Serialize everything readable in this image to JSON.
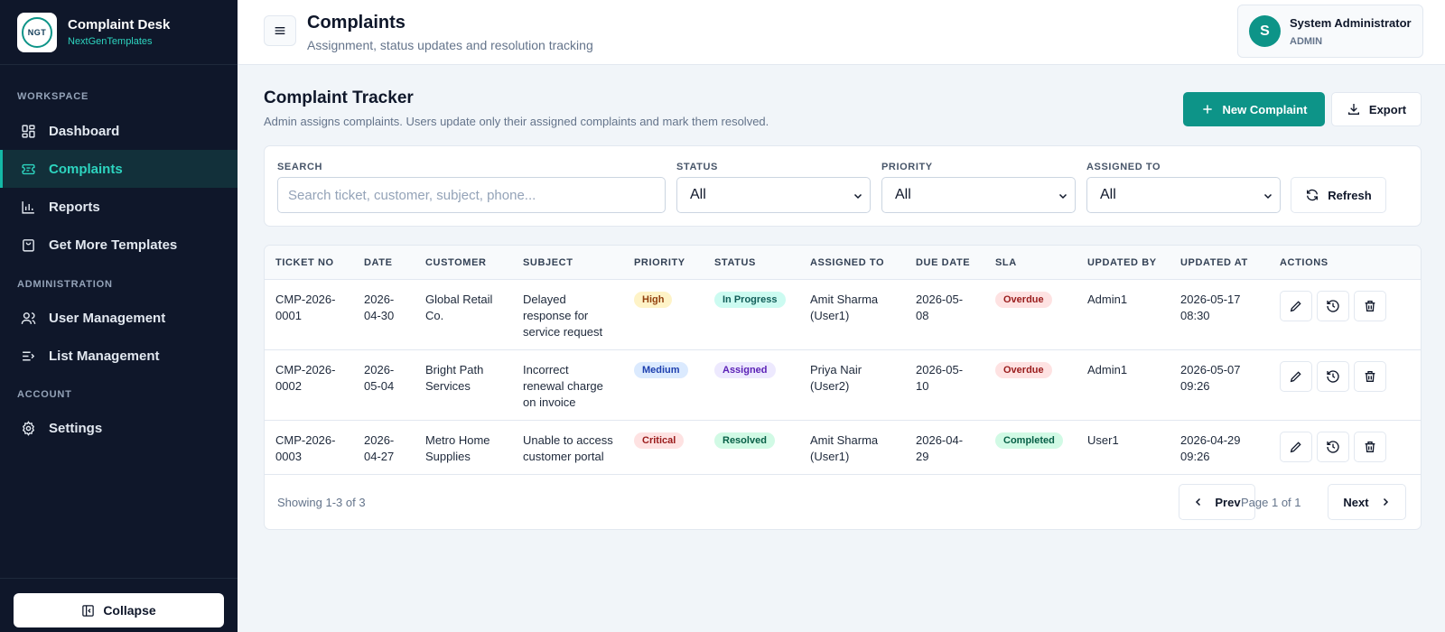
{
  "brand": {
    "title": "Complaint Desk",
    "subtitle": "NextGenTemplates",
    "logo_text": "NGT"
  },
  "sidebar": {
    "sections": [
      "WORKSPACE",
      "ADMINISTRATION",
      "ACCOUNT"
    ],
    "items": [
      {
        "label": "Dashboard",
        "icon": "dashboard-icon"
      },
      {
        "label": "Complaints",
        "icon": "ticket-icon",
        "active": true
      },
      {
        "label": "Reports",
        "icon": "chart-icon"
      },
      {
        "label": "Get More Templates",
        "icon": "bag-icon"
      },
      {
        "label": "User Management",
        "icon": "users-icon"
      },
      {
        "label": "List Management",
        "icon": "list-icon"
      },
      {
        "label": "Settings",
        "icon": "gear-icon"
      }
    ],
    "collapse_label": "Collapse"
  },
  "header": {
    "title": "Complaints",
    "subtitle": "Assignment, status updates and resolution tracking",
    "user": {
      "initial": "S",
      "name": "System Administrator",
      "role": "ADMIN"
    }
  },
  "main": {
    "title": "Complaint Tracker",
    "subtitle": "Admin assigns complaints. Users update only their assigned complaints and mark them resolved.",
    "new_button": "New Complaint",
    "export_button": "Export",
    "filters": {
      "search_label": "SEARCH",
      "search_placeholder": "Search ticket, customer, subject, phone...",
      "status_label": "STATUS",
      "status_value": "All",
      "priority_label": "PRIORITY",
      "priority_value": "All",
      "assigned_label": "ASSIGNED TO",
      "assigned_value": "All",
      "refresh_button": "Refresh"
    },
    "table": {
      "headers": [
        "TICKET NO",
        "DATE",
        "CUSTOMER",
        "SUBJECT",
        "PRIORITY",
        "STATUS",
        "ASSIGNED TO",
        "DUE DATE",
        "SLA",
        "UPDATED BY",
        "UPDATED AT",
        "ACTIONS"
      ],
      "rows": [
        {
          "ticket": [
            "CMP-2026-",
            "0001"
          ],
          "date": [
            "2026-",
            "04-30"
          ],
          "customer": [
            "Global Retail",
            "Co."
          ],
          "subject": [
            "Delayed",
            "response for",
            "service request"
          ],
          "priority": "High",
          "status": "In Progress",
          "assigned": [
            "Amit Sharma",
            "(User1)"
          ],
          "due": [
            "2026-05-",
            "08"
          ],
          "sla": "Overdue",
          "updated_by": "Admin1",
          "updated_at": [
            "2026-05-17",
            "08:30"
          ]
        },
        {
          "ticket": [
            "CMP-2026-",
            "0002"
          ],
          "date": [
            "2026-",
            "05-04"
          ],
          "customer": [
            "Bright Path",
            "Services"
          ],
          "subject": [
            "Incorrect",
            "renewal charge",
            "on invoice"
          ],
          "priority": "Medium",
          "status": "Assigned",
          "assigned": [
            "Priya Nair",
            "(User2)"
          ],
          "due": [
            "2026-05-",
            "10"
          ],
          "sla": "Overdue",
          "updated_by": "Admin1",
          "updated_at": [
            "2026-05-07",
            "09:26"
          ]
        },
        {
          "ticket": [
            "CMP-2026-",
            "0003"
          ],
          "date": [
            "2026-",
            "04-27"
          ],
          "customer": [
            "Metro Home",
            "Supplies"
          ],
          "subject": [
            "Unable to access",
            "customer portal"
          ],
          "priority": "Critical",
          "status": "Resolved",
          "assigned": [
            "Amit Sharma",
            "(User1)"
          ],
          "due": [
            "2026-04-",
            "29"
          ],
          "sla": "Completed",
          "updated_by": "User1",
          "updated_at": [
            "2026-04-29",
            "09:26"
          ]
        }
      ]
    },
    "pagination": {
      "showing": "Showing 1-3 of 3",
      "prev": "Prev",
      "page_text": "Page 1 of 1",
      "next": "Next"
    }
  },
  "colors": {
    "accent": "#0d9488",
    "sidebar_bg": "#0f172a",
    "badge_high_bg": "#fef3c7",
    "badge_high_fg": "#92400e",
    "badge_medium_bg": "#dbeafe",
    "badge_medium_fg": "#1e40af",
    "badge_critical_bg": "#fee2e2",
    "badge_critical_fg": "#991b1b",
    "badge_inprogress_bg": "#ccfbf1",
    "badge_inprogress_fg": "#115e59",
    "badge_assigned_bg": "#ede9fe",
    "badge_assigned_fg": "#5b21b6",
    "badge_resolved_bg": "#d1fae5",
    "badge_resolved_fg": "#065f46",
    "badge_overdue_bg": "#fee2e2",
    "badge_overdue_fg": "#991b1b",
    "badge_completed_bg": "#d1fae5",
    "badge_completed_fg": "#065f46"
  }
}
